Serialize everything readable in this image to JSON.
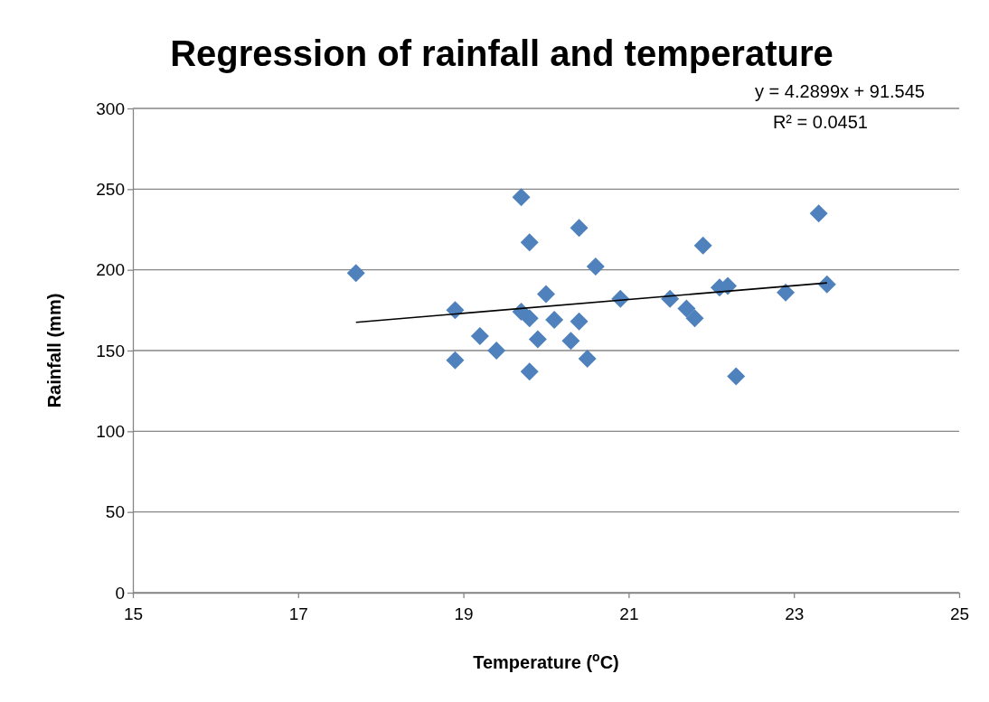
{
  "chart_data": {
    "type": "scatter",
    "title": "Regression of rainfall and temperature",
    "xlabel": "Temperature ($^{o}$C)",
    "ylabel": "Rainfall (mm)",
    "annotations": [
      "y = 4.2899x + 91.545",
      "R² = 0.0451"
    ],
    "series": [
      {
        "color": "#4f81bd",
        "marker": "diamond",
        "x": [
          17.7,
          18.9,
          18.9,
          19.2,
          19.4,
          19.7,
          19.7,
          19.8,
          19.8,
          19.8,
          19.9,
          20.0,
          20.1,
          20.3,
          20.4,
          20.4,
          20.5,
          20.6,
          20.9,
          21.5,
          21.7,
          21.8,
          21.9,
          22.1,
          22.2,
          22.3,
          22.9,
          23.3,
          23.4
        ],
        "values": [
          198,
          175,
          144,
          159,
          150,
          245,
          174,
          170,
          217,
          137,
          157,
          185,
          169,
          156,
          226,
          168,
          145,
          202,
          182,
          182,
          176,
          170,
          215,
          189,
          190,
          134,
          186,
          235,
          191
        ]
      },
      {
        "type": "line",
        "color": "#000000",
        "marker": "none",
        "line_style": "solid",
        "x": [
          17.7,
          23.4
        ],
        "values": [
          167.5,
          191.9
        ]
      }
    ],
    "xlim": [
      15,
      25
    ],
    "xticks": [
      15,
      17,
      19,
      21,
      23,
      25
    ],
    "ylim": [
      0,
      300
    ],
    "yticks": [
      0,
      50,
      100,
      150,
      200,
      250,
      300
    ],
    "grid": "y"
  }
}
